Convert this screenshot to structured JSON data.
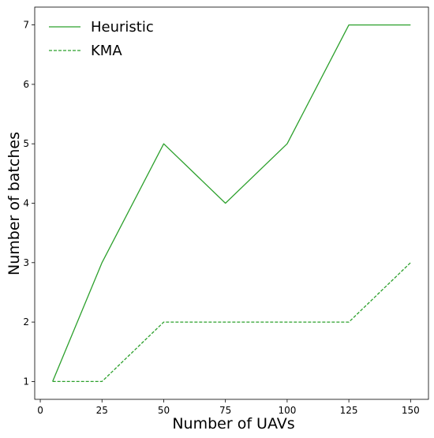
{
  "chart_data": {
    "type": "line",
    "title": "",
    "xlabel": "Number of UAVs",
    "ylabel": "Number of batches",
    "x": [
      5,
      25,
      50,
      75,
      100,
      125,
      150
    ],
    "xlim": [
      -2.25,
      157.25
    ],
    "ylim": [
      0.7,
      7.3
    ],
    "xticks": [
      0,
      25,
      50,
      75,
      100,
      125,
      150
    ],
    "yticks": [
      1,
      2,
      3,
      4,
      5,
      6,
      7
    ],
    "grid": false,
    "legend_position": "top-left",
    "series": [
      {
        "name": "Heuristic",
        "values": [
          1,
          3,
          5,
          4,
          5,
          7,
          7
        ],
        "color": "#2ca02c",
        "line_style": "solid"
      },
      {
        "name": "KMA",
        "values": [
          1,
          1,
          2,
          2,
          2,
          2,
          3
        ],
        "color": "#2ca02c",
        "line_style": "dashed"
      }
    ]
  }
}
